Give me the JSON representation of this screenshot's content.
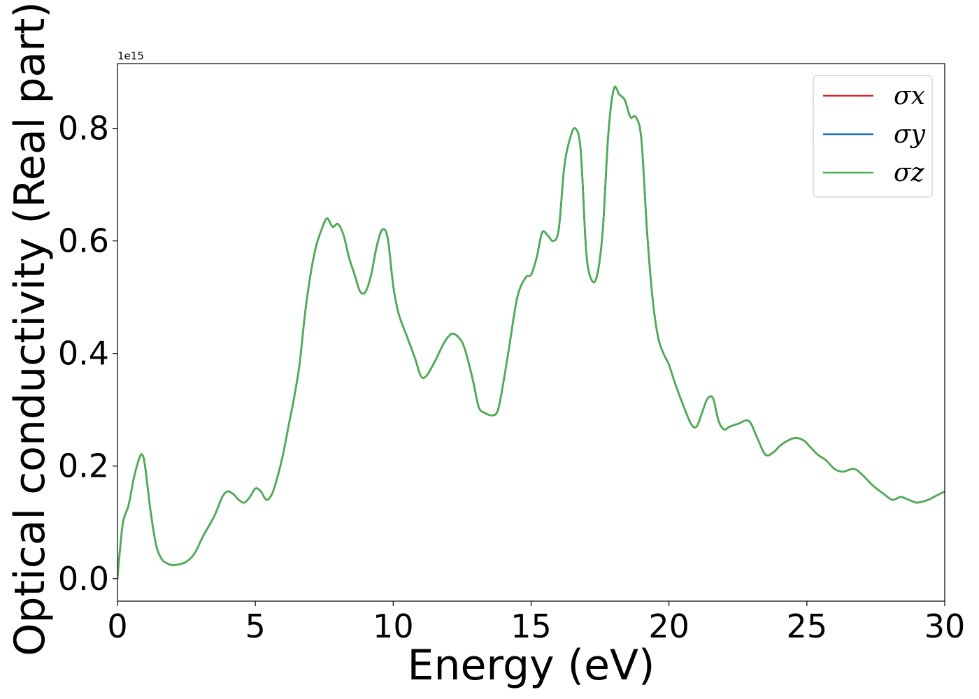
{
  "chart_data": {
    "type": "line",
    "title": "",
    "xlabel": "Energy (eV)",
    "ylabel": "Optical conductivity (Real part)",
    "y_offset_label": "1e15",
    "xlim": [
      0,
      30
    ],
    "ylim": [
      -0.04,
      0.915
    ],
    "xticks": [
      0,
      5,
      10,
      15,
      20,
      25,
      30
    ],
    "xtick_labels": [
      "0",
      "5",
      "10",
      "15",
      "20",
      "25",
      "30"
    ],
    "yticks": [
      0.0,
      0.2,
      0.4,
      0.6,
      0.8
    ],
    "ytick_labels": [
      "0.0",
      "0.2",
      "0.4",
      "0.6",
      "0.8"
    ],
    "grid": false,
    "legend_position": "top-right",
    "x": [
      0,
      0.05,
      0.2,
      0.4,
      0.6,
      0.8,
      0.9,
      1.0,
      1.2,
      1.4,
      1.6,
      1.8,
      2.0,
      2.2,
      2.5,
      2.8,
      3.1,
      3.5,
      3.8,
      4.0,
      4.2,
      4.4,
      4.6,
      4.8,
      5.0,
      5.2,
      5.4,
      5.6,
      5.8,
      6.0,
      6.2,
      6.4,
      6.6,
      6.8,
      7.0,
      7.2,
      7.4,
      7.6,
      7.8,
      8.0,
      8.2,
      8.4,
      8.6,
      8.8,
      9.0,
      9.2,
      9.4,
      9.6,
      9.8,
      10.0,
      10.2,
      10.5,
      10.8,
      11.0,
      11.2,
      11.5,
      11.8,
      12.0,
      12.2,
      12.5,
      12.7,
      12.9,
      13.1,
      13.3,
      13.6,
      13.8,
      14.0,
      14.2,
      14.5,
      14.8,
      15.0,
      15.2,
      15.4,
      15.6,
      15.8,
      16.0,
      16.2,
      16.4,
      16.6,
      16.8,
      17.0,
      17.2,
      17.4,
      17.6,
      17.8,
      18.0,
      18.2,
      18.4,
      18.6,
      18.8,
      19.0,
      19.2,
      19.4,
      19.6,
      19.8,
      20.0,
      20.2,
      20.5,
      20.8,
      21.0,
      21.2,
      21.4,
      21.6,
      21.8,
      22.0,
      22.2,
      22.5,
      22.9,
      23.2,
      23.5,
      23.8,
      24.0,
      24.3,
      24.6,
      24.9,
      25.1,
      25.4,
      25.7,
      26.0,
      26.3,
      26.7,
      27.0,
      27.4,
      27.8,
      28.1,
      28.4,
      28.7,
      29.0,
      29.4,
      29.6,
      29.8,
      30.0
    ],
    "series": [
      {
        "name": "σx",
        "color": "#d62728",
        "ref": "base"
      },
      {
        "name": "σy",
        "color": "#1f77b4",
        "ref": "base"
      },
      {
        "name": "σz",
        "color": "#4caf50",
        "ref": "base"
      }
    ],
    "values": [
      0.0,
      0.03,
      0.1,
      0.13,
      0.18,
      0.215,
      0.22,
      0.2,
      0.12,
      0.06,
      0.035,
      0.027,
      0.024,
      0.025,
      0.03,
      0.045,
      0.075,
      0.11,
      0.145,
      0.155,
      0.15,
      0.14,
      0.135,
      0.145,
      0.16,
      0.155,
      0.14,
      0.15,
      0.18,
      0.22,
      0.27,
      0.32,
      0.38,
      0.47,
      0.54,
      0.59,
      0.62,
      0.64,
      0.625,
      0.63,
      0.61,
      0.57,
      0.54,
      0.51,
      0.51,
      0.54,
      0.59,
      0.62,
      0.605,
      0.52,
      0.47,
      0.43,
      0.39,
      0.36,
      0.36,
      0.385,
      0.415,
      0.43,
      0.435,
      0.42,
      0.39,
      0.35,
      0.305,
      0.295,
      0.29,
      0.3,
      0.35,
      0.41,
      0.5,
      0.535,
      0.54,
      0.57,
      0.615,
      0.61,
      0.6,
      0.62,
      0.73,
      0.78,
      0.8,
      0.76,
      0.58,
      0.53,
      0.54,
      0.62,
      0.79,
      0.87,
      0.86,
      0.85,
      0.82,
      0.82,
      0.78,
      0.62,
      0.5,
      0.43,
      0.4,
      0.38,
      0.35,
      0.31,
      0.275,
      0.27,
      0.295,
      0.32,
      0.32,
      0.28,
      0.265,
      0.27,
      0.275,
      0.28,
      0.25,
      0.22,
      0.225,
      0.235,
      0.245,
      0.25,
      0.245,
      0.235,
      0.22,
      0.21,
      0.195,
      0.19,
      0.195,
      0.185,
      0.165,
      0.15,
      0.14,
      0.145,
      0.14,
      0.135,
      0.14,
      0.145,
      0.15,
      0.155
    ]
  }
}
